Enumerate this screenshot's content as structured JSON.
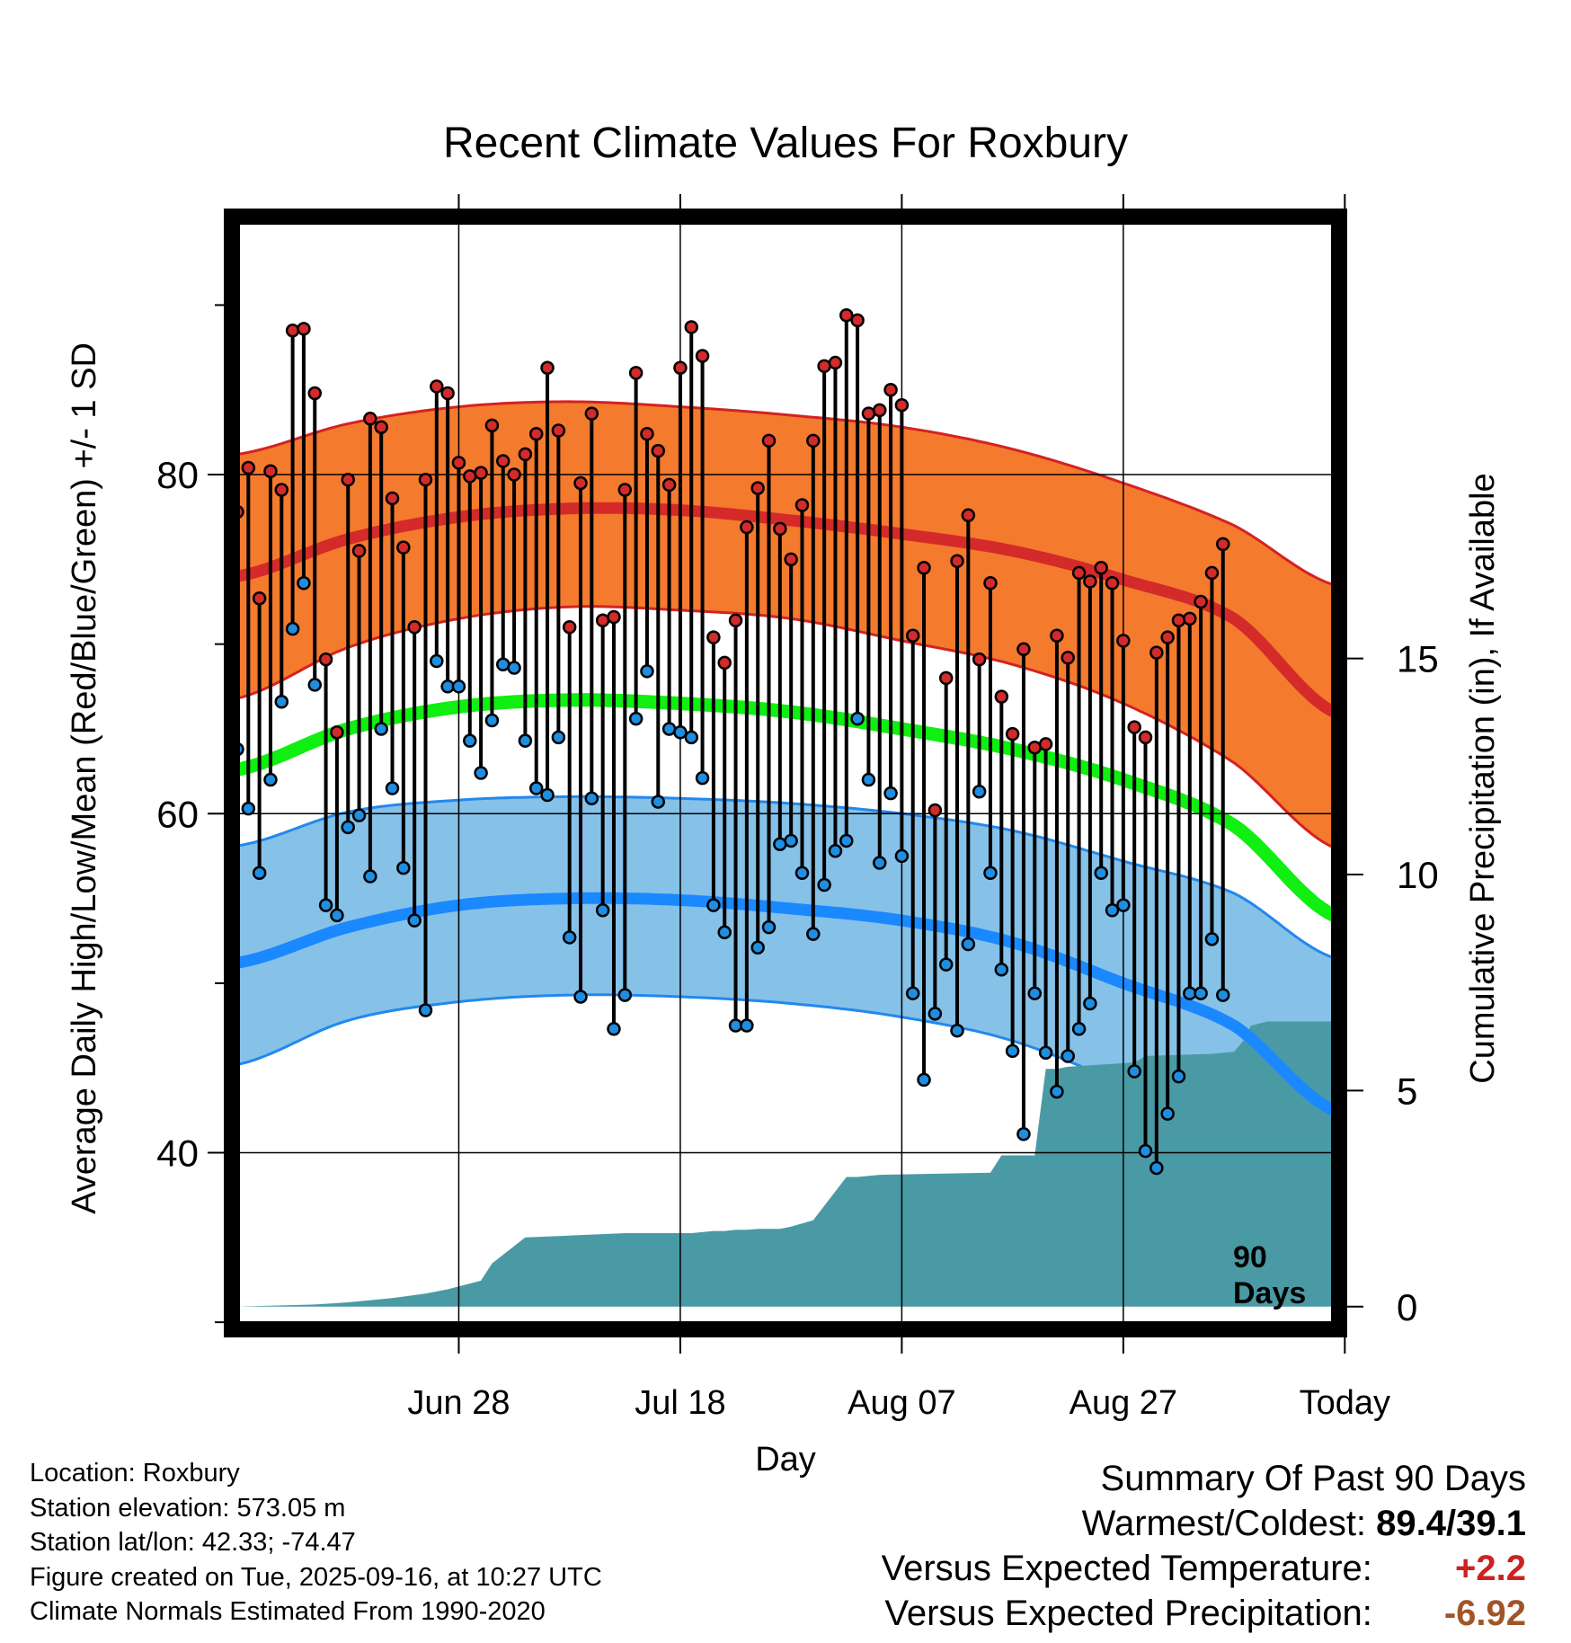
{
  "chart_data": {
    "type": "line",
    "title": "Recent Climate Values For Roxbury",
    "xlabel": "Day",
    "ylabel": "Average Daily High/Low/Mean (Red/Blue/Green) +/- 1 SD",
    "ylabel_right": "Cumulative Precipitation (in), If Available",
    "ylim": [
      29.9,
      94.9
    ],
    "ylim_right": [
      -0.4,
      25.1
    ],
    "yticks": [
      {
        "v": 40,
        "label": "40"
      },
      {
        "v": 60,
        "label": "60"
      },
      {
        "v": 80,
        "label": "80"
      }
    ],
    "yticks_minor": [
      30,
      50,
      70,
      90
    ],
    "yticks_right": [
      {
        "v": 0,
        "label": "0"
      },
      {
        "v": 5,
        "label": "5"
      },
      {
        "v": 10,
        "label": "10"
      },
      {
        "v": 15,
        "label": "15"
      }
    ],
    "day_range": [
      -90,
      9
    ],
    "xticks": [
      {
        "day": -70,
        "label": "Jun 28"
      },
      {
        "day": -50,
        "label": "Jul 18"
      },
      {
        "day": -30,
        "label": "Aug 07"
      },
      {
        "day": -10,
        "label": "Aug 27"
      },
      {
        "day": 10,
        "label": "Today"
      }
    ],
    "today_day": 10,
    "today_label_line1": "90",
    "today_label_line2": "Days",
    "normals_days": [
      -90,
      -80,
      -70,
      -60,
      -50,
      -40,
      -30,
      -20,
      -10,
      0,
      9
    ],
    "normal_high_mean": [
      74.0,
      76.2,
      77.5,
      78.0,
      77.9,
      77.3,
      76.5,
      75.5,
      73.8,
      71.5,
      66.0
    ],
    "normal_high_upper": [
      81.2,
      83.0,
      84.0,
      84.3,
      84.0,
      83.5,
      82.8,
      81.5,
      79.5,
      77.0,
      73.5
    ],
    "normal_high_lower": [
      66.8,
      69.8,
      71.5,
      72.2,
      72.0,
      71.5,
      70.2,
      68.8,
      66.5,
      63.0,
      58.0
    ],
    "normal_mean": [
      62.6,
      65.0,
      66.3,
      66.7,
      66.5,
      66.0,
      65.0,
      63.8,
      62.0,
      59.3,
      54.0
    ],
    "normal_low_mean": [
      51.2,
      53.3,
      54.6,
      55.0,
      54.9,
      54.4,
      53.7,
      52.4,
      50.0,
      47.5,
      42.5
    ],
    "normal_low_upper": [
      58.1,
      60.1,
      60.8,
      61.0,
      60.9,
      60.6,
      60.0,
      59.0,
      57.2,
      55.3,
      51.5
    ],
    "normal_low_lower": [
      45.2,
      47.8,
      48.9,
      49.3,
      49.2,
      48.8,
      48.0,
      46.6,
      44.0,
      40.8,
      35.5
    ],
    "daily_high": [
      77.8,
      80.4,
      72.7,
      80.2,
      79.1,
      88.5,
      88.6,
      84.8,
      69.1,
      64.8,
      79.7,
      75.5,
      83.3,
      82.8,
      78.6,
      75.7,
      71.0,
      79.7,
      85.2,
      84.8,
      80.7,
      79.9,
      80.1,
      82.9,
      80.8,
      80.0,
      81.2,
      82.4,
      86.3,
      82.6,
      71.0,
      79.5,
      83.6,
      71.4,
      71.6,
      79.1,
      86.0,
      82.4,
      81.4,
      79.4,
      86.3,
      88.7,
      87.0,
      70.4,
      68.9,
      71.4,
      76.9,
      79.2,
      82.0,
      76.8,
      75.0,
      78.2,
      82.0,
      86.4,
      86.6,
      89.4,
      89.1,
      83.6,
      83.8,
      85.0,
      84.1,
      70.5,
      74.5,
      60.2,
      68.0,
      74.9,
      77.6,
      69.1,
      73.6,
      66.9,
      64.7,
      69.7,
      63.9,
      64.1,
      70.5,
      69.2,
      74.2,
      73.7,
      74.5,
      73.6,
      70.2,
      65.1,
      64.5,
      69.5,
      70.4,
      71.4,
      71.5,
      72.5,
      74.2,
      75.9
    ],
    "daily_low": [
      63.8,
      60.3,
      56.5,
      62.0,
      66.6,
      70.9,
      73.6,
      67.6,
      54.6,
      54.0,
      59.2,
      59.9,
      56.3,
      65.0,
      61.5,
      56.8,
      53.7,
      48.4,
      69.0,
      67.5,
      67.5,
      64.3,
      62.4,
      65.5,
      68.8,
      68.6,
      64.3,
      61.5,
      61.1,
      64.5,
      52.7,
      49.2,
      60.9,
      54.3,
      47.3,
      49.3,
      65.6,
      68.4,
      60.7,
      65.0,
      64.8,
      64.5,
      62.1,
      54.6,
      53.0,
      47.5,
      47.5,
      52.1,
      53.3,
      58.2,
      58.4,
      56.5,
      52.9,
      55.8,
      57.8,
      58.4,
      65.6,
      62.0,
      57.1,
      61.2,
      57.5,
      49.4,
      44.3,
      48.2,
      51.1,
      47.2,
      52.3,
      61.3,
      56.5,
      50.8,
      46.0,
      41.1,
      49.4,
      45.9,
      43.6,
      45.7,
      47.3,
      48.8,
      56.5,
      54.3,
      54.6,
      44.8,
      40.1,
      39.1,
      42.3,
      44.5,
      49.4,
      49.4,
      52.6,
      49.3
    ],
    "precip_days": [
      -90,
      -83,
      -80,
      -76,
      -73,
      -71,
      -68,
      -67,
      -64,
      -55,
      -54,
      -51,
      -50,
      -49,
      -47,
      -46,
      -45,
      -44,
      -43,
      -42,
      -41,
      -40,
      -38,
      -35,
      -34,
      -32,
      -22,
      -21,
      -18,
      -17,
      -16,
      -15,
      -9,
      -8,
      -2,
      0,
      1,
      1.5,
      3,
      9
    ],
    "precip_cum": [
      0,
      0.05,
      0.1,
      0.2,
      0.3,
      0.4,
      0.6,
      1.0,
      1.6,
      1.7,
      1.7,
      1.7,
      1.7,
      1.7,
      1.75,
      1.75,
      1.78,
      1.78,
      1.8,
      1.8,
      1.8,
      1.85,
      2.0,
      3.0,
      3.0,
      3.05,
      3.1,
      3.5,
      3.5,
      5.5,
      5.5,
      5.55,
      5.65,
      5.8,
      5.85,
      5.9,
      6.2,
      6.5,
      6.6,
      6.6
    ],
    "colors": {
      "high_band": "#f47a2e",
      "high_edge": "#d42222",
      "high_mean": "#d42a2a",
      "mean": "#11ee11",
      "low_band": "#86c1e8",
      "low_edge": "#2288ee",
      "low_mean": "#1a88ff",
      "precip": "#4a9aa5",
      "high_dot": "#d32a2a",
      "low_dot": "#1f8de0"
    }
  },
  "info": {
    "location": "Location: Roxbury",
    "elevation": "Station elevation: 573.05 m",
    "latlon": "Station lat/lon: 42.33; -74.47",
    "created": "Figure created on Tue, 2025-09-16, at 10:27 UTC",
    "normals": "Climate Normals Estimated From 1990-2020"
  },
  "summary": {
    "heading": "Summary Of Past 90 Days",
    "warm_cold_label": "Warmest/Coldest:",
    "warm_cold_value": "89.4/39.1",
    "temp_label": "Versus Expected Temperature:",
    "temp_value": "+2.2",
    "temp_color": "#cc2222",
    "precip_label": "Versus Expected Precipitation:",
    "precip_value": "-6.92",
    "precip_color": "#a05528"
  }
}
